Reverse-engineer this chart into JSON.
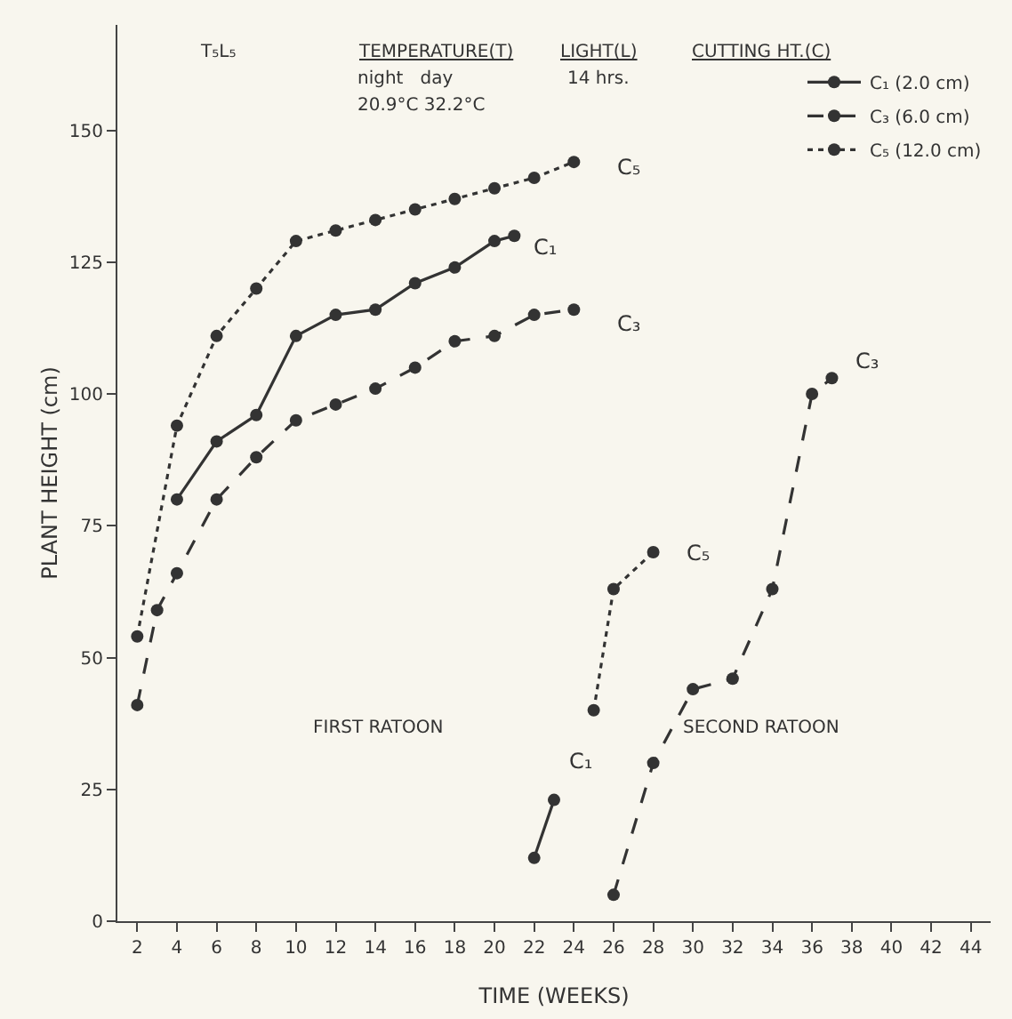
{
  "chart_data": {
    "type": "line",
    "xlabel": "TIME (WEEKS)",
    "ylabel": "PLANT HEIGHT (cm)",
    "xlim": [
      1,
      45
    ],
    "xticks": [
      2,
      4,
      6,
      8,
      10,
      12,
      14,
      16,
      18,
      20,
      22,
      24,
      26,
      28,
      30,
      32,
      34,
      36,
      38,
      40,
      42,
      44
    ],
    "ylim": [
      0,
      170
    ],
    "yticks": [
      0,
      25,
      50,
      75,
      100,
      125,
      150
    ],
    "grid": false,
    "legend": "top right",
    "marker": "circle",
    "series": [
      {
        "name": "C₁ (2.0 cm)",
        "color": "#333333",
        "line_style": "solid",
        "x": [
          4,
          6,
          8,
          10,
          12,
          14,
          16,
          18,
          20,
          21
        ],
        "values": [
          80,
          91,
          96,
          111,
          115,
          116,
          121,
          124,
          129,
          130
        ]
      },
      {
        "name": "C₃ (6.0 cm)",
        "color": "#333333",
        "line_style": "dashed",
        "x": [
          2,
          3,
          4,
          6,
          8,
          10,
          12,
          14,
          16,
          18,
          20,
          22,
          24
        ],
        "values": [
          41,
          59,
          66,
          80,
          88,
          95,
          98,
          101,
          105,
          110,
          111,
          115,
          116
        ]
      },
      {
        "name": "C₅ (12.0 cm)",
        "color": "#333333",
        "line_style": "dotted",
        "x": [
          2,
          4,
          6,
          8,
          10,
          12,
          14,
          16,
          18,
          20,
          22,
          24
        ],
        "values": [
          54,
          94,
          111,
          120,
          129,
          131,
          133,
          135,
          137,
          139,
          141,
          144
        ]
      },
      {
        "color": "#333333",
        "line_style": "solid",
        "x": [
          22,
          23
        ],
        "values": [
          12,
          23
        ]
      },
      {
        "color": "#333333",
        "line_style": "dashed",
        "x": [
          26,
          28,
          30,
          32,
          34,
          36,
          37
        ],
        "values": [
          5,
          30,
          44,
          46,
          63,
          100,
          103
        ]
      },
      {
        "color": "#333333",
        "line_style": "dotted",
        "x": [
          25,
          26,
          28
        ],
        "values": [
          40,
          63,
          70
        ]
      }
    ],
    "annotations": [
      "T₅L₅",
      "TEMPERATURE(T)",
      "night   day",
      "20.9°C 32.2°C",
      "LIGHT(L)",
      "14 hrs.",
      "CUTTING HT.(C)",
      "FIRST RATOON",
      "SECOND RATOON",
      "C₅",
      "C₁",
      "C₃",
      "C₅",
      "C₁",
      "C₃"
    ]
  }
}
